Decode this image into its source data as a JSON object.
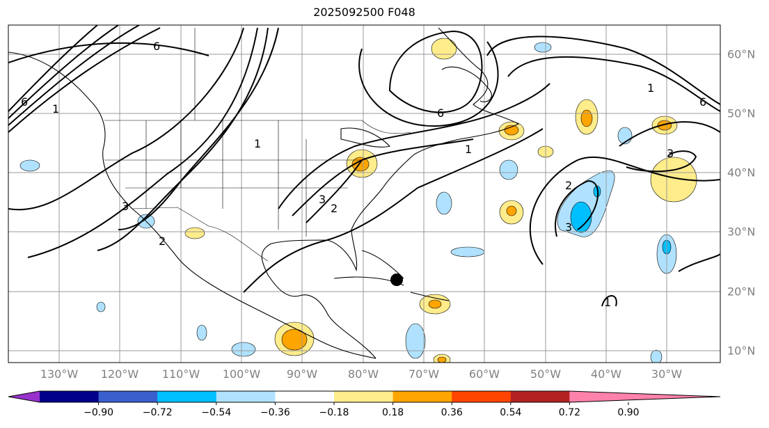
{
  "title": "2025092500 F048",
  "lon_labels": [
    "130°W",
    "120°W",
    "110°W",
    "100°W",
    "90°W",
    "80°W",
    "70°W",
    "60°W",
    "50°W",
    "40°W",
    "30°W"
  ],
  "lat_labels": [
    "60°N",
    "50°N",
    "40°N",
    "30°N",
    "20°N",
    "10°N"
  ],
  "contour_labels": [
    "6",
    "1",
    "6",
    "3",
    "2",
    "1",
    "6",
    "1",
    "2",
    "3",
    "2",
    "3",
    "6",
    "1",
    "3",
    "1"
  ],
  "colorbar": {
    "ticks": [
      "−0.90",
      "−0.72",
      "−0.54",
      "−0.36",
      "−0.18",
      "0.18",
      "0.36",
      "0.54",
      "0.72",
      "0.90"
    ],
    "colors": [
      "#9932cc",
      "#00008b",
      "#3a5fcd",
      "#00bfff",
      "#b0e2ff",
      "#ffffff",
      "#ffec8b",
      "#ffa500",
      "#ff4500",
      "#b22222",
      "#ff82ab"
    ]
  },
  "marker": "storm-center"
}
